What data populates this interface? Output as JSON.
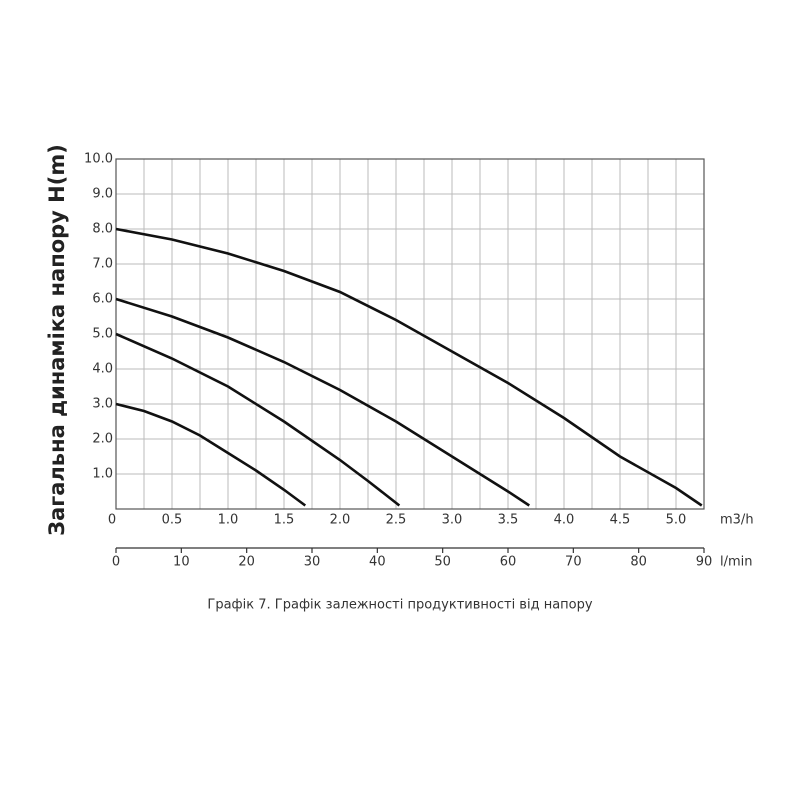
{
  "chart_data": {
    "type": "line",
    "y_label": "Загальна динаміка напору H(m)",
    "x_unit": "m3/h",
    "x2_unit": "l/min",
    "caption": "Графік 7. Графік залежності продуктивності від напору",
    "xlim": [
      0,
      5.25
    ],
    "xticks": [
      0,
      0.5,
      {
        "value": 1,
        "label": "1.0"
      },
      1.5,
      {
        "value": 2,
        "label": "2.0"
      },
      2.5,
      {
        "value": 3,
        "label": "3.0"
      },
      3.5,
      {
        "value": 4,
        "label": "4.0"
      },
      4.5,
      {
        "value": 5,
        "label": "5.0"
      }
    ],
    "xminorticks": [
      0.25,
      0.75,
      1.25,
      1.75,
      2.25,
      2.75,
      3.25,
      3.75,
      4.25,
      4.75,
      5.25
    ],
    "x2lim": [
      0,
      90
    ],
    "x2ticks": [
      0,
      10,
      20,
      30,
      40,
      50,
      60,
      70,
      80,
      90
    ],
    "ylim": [
      0,
      10
    ],
    "yticks": [
      {
        "value": 1,
        "label": "1.0"
      },
      {
        "value": 2,
        "label": "2.0"
      },
      {
        "value": 3,
        "label": "3.0"
      },
      {
        "value": 4,
        "label": "4.0"
      },
      {
        "value": 5,
        "label": "5.0"
      },
      {
        "value": 6,
        "label": "6.0"
      },
      {
        "value": 7,
        "label": "7.0"
      },
      {
        "value": 8,
        "label": "8.0"
      },
      {
        "value": 9,
        "label": "9.0"
      },
      {
        "value": 10,
        "label": "10.0"
      }
    ],
    "grid": true,
    "series": [
      {
        "color": "#111111",
        "x": [
          0,
          0.25,
          0.5,
          0.75,
          1.0,
          1.25,
          1.5,
          1.69
        ],
        "values": [
          3.0,
          2.8,
          2.5,
          2.1,
          1.6,
          1.1,
          0.55,
          0.1
        ]
      },
      {
        "color": "#111111",
        "x": [
          0,
          0.5,
          1.0,
          1.5,
          2.0,
          2.25,
          2.53
        ],
        "values": [
          5.0,
          4.3,
          3.5,
          2.5,
          1.4,
          0.8,
          0.1
        ]
      },
      {
        "color": "#111111",
        "x": [
          0,
          0.5,
          1.0,
          1.5,
          2.0,
          2.5,
          3.0,
          3.5,
          3.69
        ],
        "values": [
          6.0,
          5.5,
          4.9,
          4.2,
          3.4,
          2.5,
          1.5,
          0.5,
          0.1
        ]
      },
      {
        "color": "#111111",
        "x": [
          0,
          0.5,
          1.0,
          1.5,
          2.0,
          2.5,
          3.0,
          3.5,
          4.0,
          4.5,
          5.0,
          5.23
        ],
        "values": [
          8.0,
          7.7,
          7.3,
          6.8,
          6.2,
          5.4,
          4.5,
          3.6,
          2.6,
          1.5,
          0.6,
          0.1
        ]
      }
    ]
  }
}
